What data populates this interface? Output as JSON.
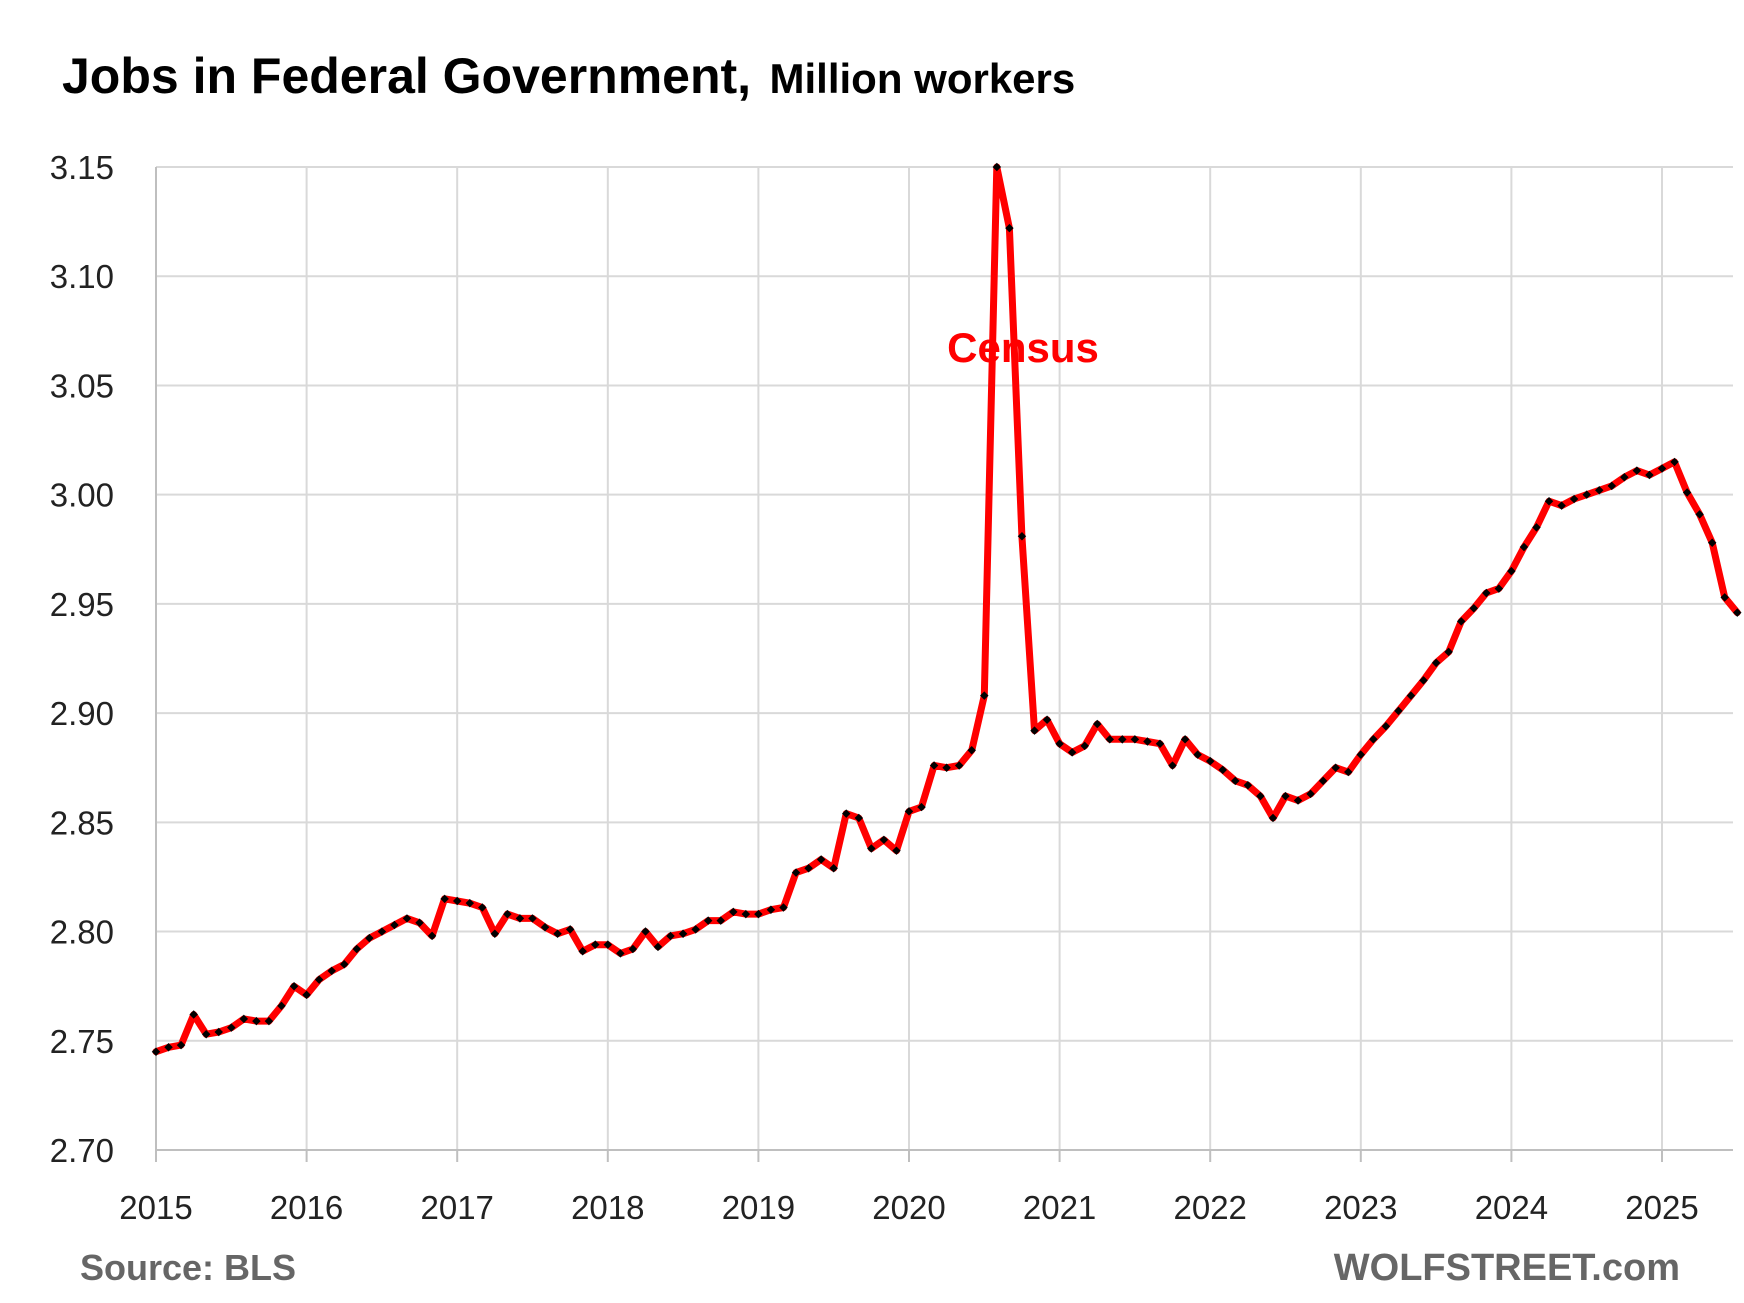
{
  "chart_data": {
    "type": "line",
    "title": "Jobs in Federal Government,",
    "subtitle": "Million workers",
    "xlabel": "",
    "ylabel": "",
    "source": "Source: BLS",
    "brand": "WOLFSTREET.com",
    "annotation": "Census",
    "grid": true,
    "legend": "none",
    "ylim": [
      2.7,
      3.15
    ],
    "y_ticks": [
      "2.70",
      "2.75",
      "2.80",
      "2.85",
      "2.90",
      "2.95",
      "3.00",
      "3.05",
      "3.10",
      "3.15"
    ],
    "x_ticks": [
      "2015",
      "2016",
      "2017",
      "2018",
      "2019",
      "2020",
      "2021",
      "2022",
      "2023",
      "2024",
      "2025"
    ],
    "x_start": "2015-01",
    "frequency": "monthly",
    "colors": {
      "line": "#ff0000",
      "marker": "#000000",
      "grid": "#d9d9d9"
    },
    "series": [
      {
        "values": [
          2.745,
          2.747,
          2.748,
          2.762,
          2.753,
          2.754,
          2.756,
          2.76,
          2.759,
          2.759,
          2.766,
          2.775,
          2.771,
          2.778,
          2.782,
          2.785,
          2.792,
          2.797,
          2.8,
          2.803,
          2.806,
          2.804,
          2.798,
          2.815,
          2.814,
          2.813,
          2.811,
          2.799,
          2.808,
          2.806,
          2.806,
          2.802,
          2.799,
          2.801,
          2.791,
          2.794,
          2.794,
          2.79,
          2.792,
          2.8,
          2.793,
          2.798,
          2.799,
          2.801,
          2.805,
          2.805,
          2.809,
          2.808,
          2.808,
          2.81,
          2.811,
          2.827,
          2.829,
          2.833,
          2.829,
          2.854,
          2.852,
          2.838,
          2.842,
          2.837,
          2.855,
          2.857,
          2.876,
          2.875,
          2.876,
          2.883,
          2.908,
          3.152,
          3.122,
          2.981,
          2.892,
          2.897,
          2.886,
          2.882,
          2.885,
          2.895,
          2.888,
          2.888,
          2.888,
          2.887,
          2.886,
          2.876,
          2.888,
          2.881,
          2.878,
          2.874,
          2.869,
          2.867,
          2.862,
          2.852,
          2.862,
          2.86,
          2.863,
          2.869,
          2.875,
          2.873,
          2.881,
          2.888,
          2.894,
          2.901,
          2.908,
          2.915,
          2.923,
          2.928,
          2.942,
          2.948,
          2.955,
          2.957,
          2.965,
          2.976,
          2.985,
          2.997,
          2.995,
          2.998,
          3.0,
          3.002,
          3.004,
          3.008,
          3.011,
          3.009,
          3.012,
          3.015,
          3.001,
          2.991,
          2.978,
          2.953,
          2.946
        ]
      }
    ]
  }
}
